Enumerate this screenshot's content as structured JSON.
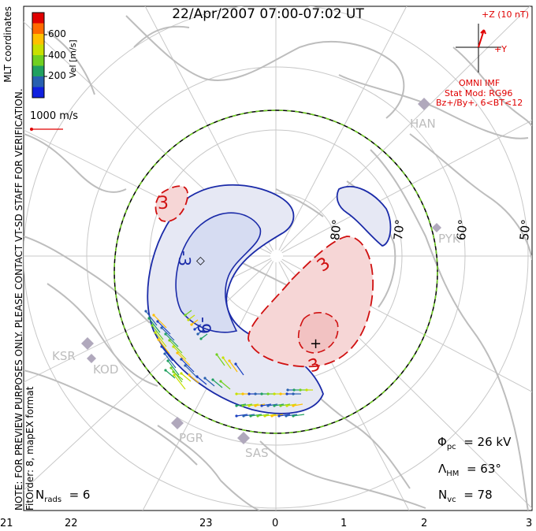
{
  "title": "22/Apr/2007 07:00-07:02 UT",
  "coords_label": "MLT coordinates",
  "note_line1": "NOTE: FOR PREVIEW PURPOSES ONLY. PLEASE CONTACT VT-SD STAFF FOR VERIFICATION.",
  "note_line2": "FitOrder: 8, mapEX format",
  "colorbar": {
    "label": "Vel [m/s]",
    "ticks": [
      "600",
      "400",
      "200"
    ],
    "colors": [
      "#e00000",
      "#ff6a00",
      "#ffc000",
      "#c8e000",
      "#70d020",
      "#20a060",
      "#2860b0",
      "#1020e0"
    ]
  },
  "scale_vector_label": "1000 m/s",
  "imf": {
    "z_label": "+Z (10 nT)",
    "y_label": "+Y",
    "line1": "OMNI IMF",
    "line2": "Stat Mod: RG96",
    "line3": "Bz+/By+, 6<BT<12"
  },
  "latitude_labels": [
    "80°",
    "70°",
    "60°",
    "50°"
  ],
  "contour_labels": [
    "3",
    "-3",
    "-9",
    "3",
    "3"
  ],
  "stations": [
    "HAN",
    "PYK",
    "KSR",
    "KOD",
    "PGR",
    "SAS"
  ],
  "stats": {
    "phi_sym": "Φ",
    "phi_sub": "pc",
    "phi_value": "= 26 kV",
    "lambda_sym": "Λ",
    "lambda_sub": "HM",
    "lambda_value": "= 63°",
    "nvc_sym": "N",
    "nvc_sub": "vc",
    "nvc_value": "= 78",
    "nrads_sym": "N",
    "nrads_sub": "rads",
    "nrads_value": "= 6"
  },
  "mlt_labels": [
    "21",
    "22",
    "23",
    "0",
    "1",
    "2",
    "3"
  ],
  "colors": {
    "negative_cell": "#1a2aa8",
    "positive_cell": "#d01010",
    "boundary": "#70d020",
    "land": "#bdbdbd"
  }
}
